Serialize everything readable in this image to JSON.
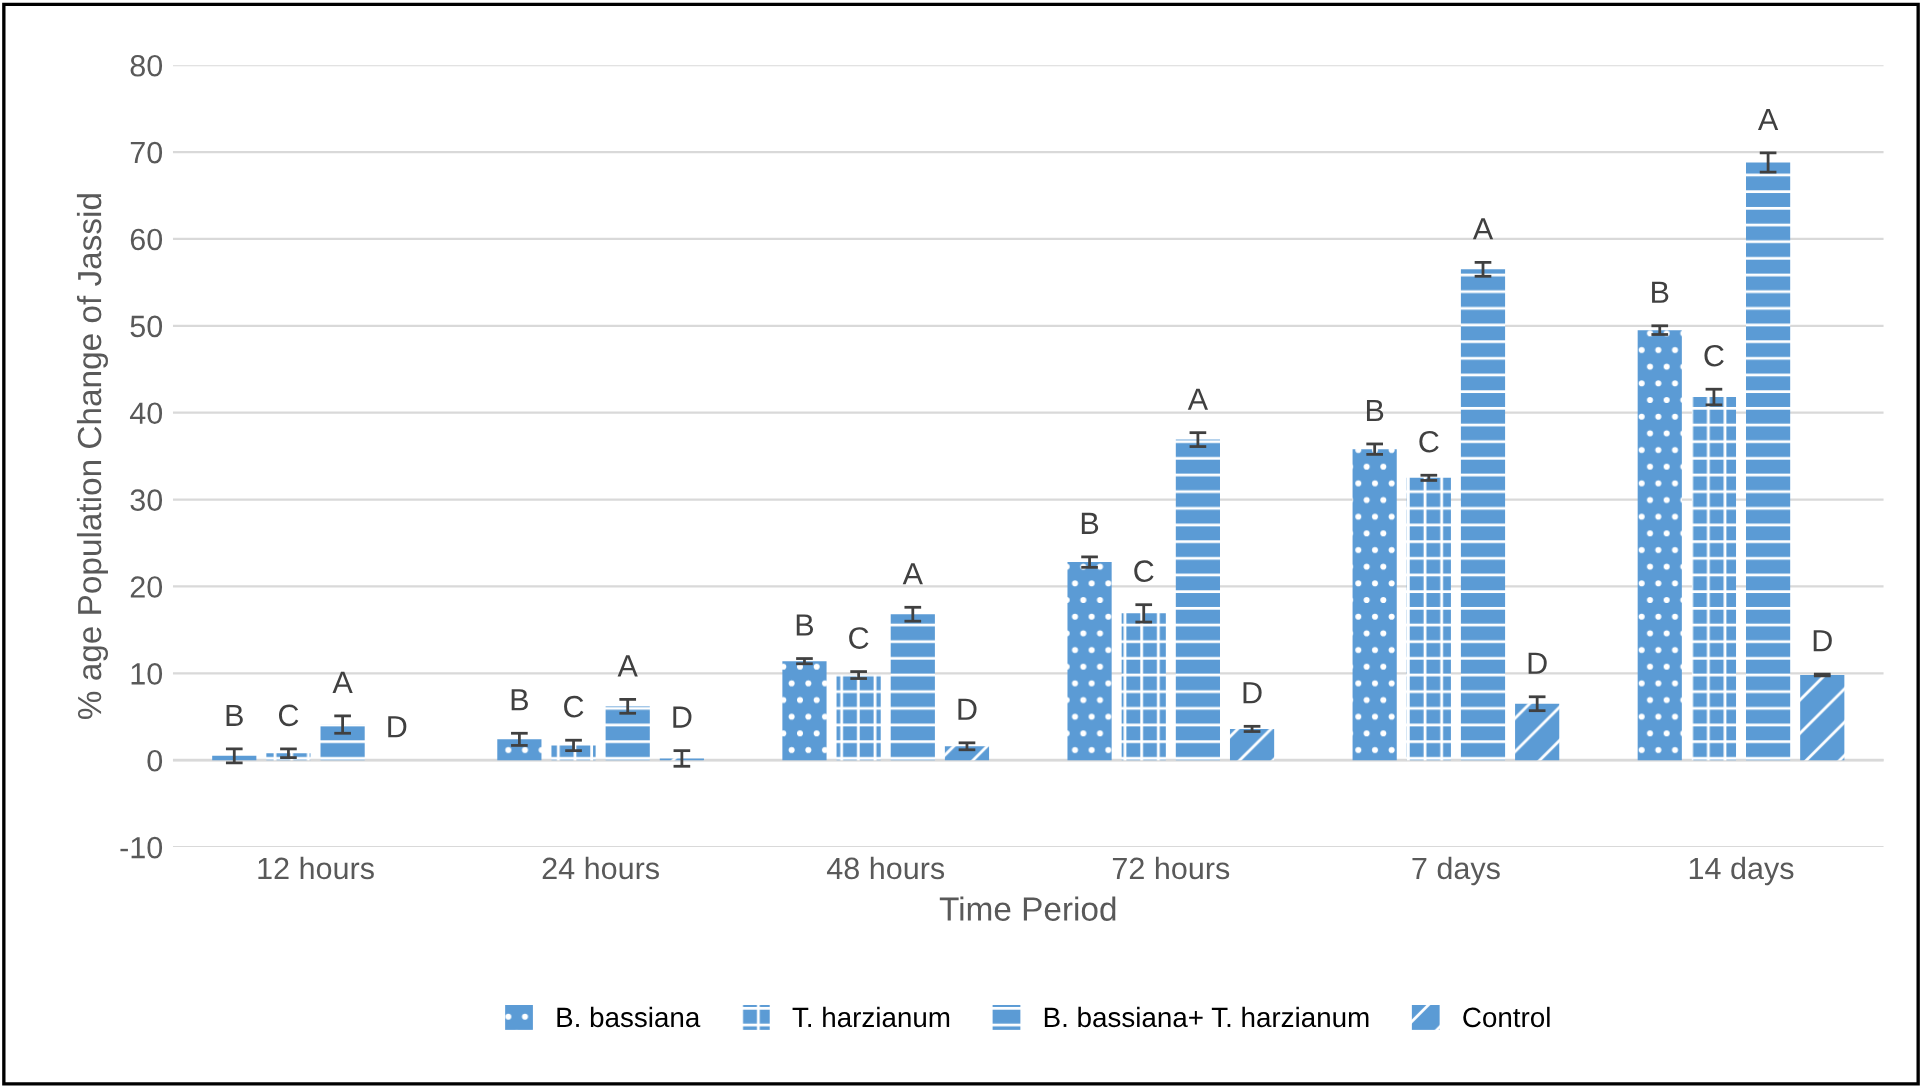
{
  "chart_data": {
    "type": "bar",
    "xlabel": "Time Period",
    "ylabel": "% age Population Change of Jassid",
    "categories": [
      "12 hours",
      "24 hours",
      "48 hours",
      "72 hours",
      "7 days",
      "14 days"
    ],
    "series": [
      {
        "name": "B. bassiana",
        "color": "#5b9bd5",
        "values": [
          0.5,
          2.4,
          11.4,
          22.8,
          35.8,
          49.5
        ],
        "errors": [
          0.8,
          0.7,
          0.3,
          0.6,
          0.6,
          0.5
        ]
      },
      {
        "name": "T. harzianum",
        "color": "#5b9bd5",
        "values": [
          0.8,
          1.7,
          9.8,
          16.9,
          32.5,
          41.8
        ],
        "errors": [
          0.5,
          0.6,
          0.4,
          1.0,
          0.3,
          0.9
        ]
      },
      {
        "name": "B. bassiana+ T. harzianum",
        "color": "#5b9bd5",
        "values": [
          4.1,
          6.2,
          16.8,
          36.9,
          56.5,
          68.8
        ],
        "errors": [
          1.0,
          0.8,
          0.8,
          0.8,
          0.8,
          1.1
        ]
      },
      {
        "name": "Control",
        "color": "#5b9bd5",
        "values": [
          0,
          0.2,
          1.6,
          3.6,
          6.5,
          9.8
        ],
        "errors": [
          null,
          0.9,
          0.4,
          0.3,
          0.8,
          0.1
        ]
      }
    ],
    "annotations": [
      {
        "text": "B",
        "x": "12 hours",
        "y": 0.5
      },
      {
        "text": "C",
        "x": "12 hours",
        "y": 0.8
      },
      {
        "text": "A",
        "x": "12 hours",
        "y": 4.1
      },
      {
        "text": "D",
        "x": "12 hours",
        "y": 0
      },
      {
        "text": "B",
        "x": "24 hours",
        "y": 2.4
      },
      {
        "text": "C",
        "x": "24 hours",
        "y": 1.7
      },
      {
        "text": "A",
        "x": "24 hours",
        "y": 6.2
      },
      {
        "text": "D",
        "x": "24 hours",
        "y": 0.2
      },
      {
        "text": "B",
        "x": "48 hours",
        "y": 11.4
      },
      {
        "text": "C",
        "x": "48 hours",
        "y": 9.8
      },
      {
        "text": "A",
        "x": "48 hours",
        "y": 16.8
      },
      {
        "text": "D",
        "x": "48 hours",
        "y": 1.6
      },
      {
        "text": "B",
        "x": "72 hours",
        "y": 22.8
      },
      {
        "text": "C",
        "x": "72 hours",
        "y": 16.9
      },
      {
        "text": "A",
        "x": "72 hours",
        "y": 36.9
      },
      {
        "text": "D",
        "x": "72 hours",
        "y": 3.6
      },
      {
        "text": "B",
        "x": "7 days",
        "y": 35.8
      },
      {
        "text": "C",
        "x": "7 days",
        "y": 32.5
      },
      {
        "text": "A",
        "x": "7 days",
        "y": 56.5
      },
      {
        "text": "D",
        "x": "7 days",
        "y": 6.5
      },
      {
        "text": "B",
        "x": "14 days",
        "y": 49.5
      },
      {
        "text": "C",
        "x": "14 days",
        "y": 41.8
      },
      {
        "text": "A",
        "x": "14 days",
        "y": 68.8
      },
      {
        "text": "D",
        "x": "14 days",
        "y": 9.8
      }
    ],
    "ylim": [
      -10,
      80
    ],
    "yticks": [
      -10,
      0,
      10,
      20,
      30,
      40,
      50,
      60,
      70,
      80
    ],
    "grid": "y",
    "legend": "bottom"
  }
}
